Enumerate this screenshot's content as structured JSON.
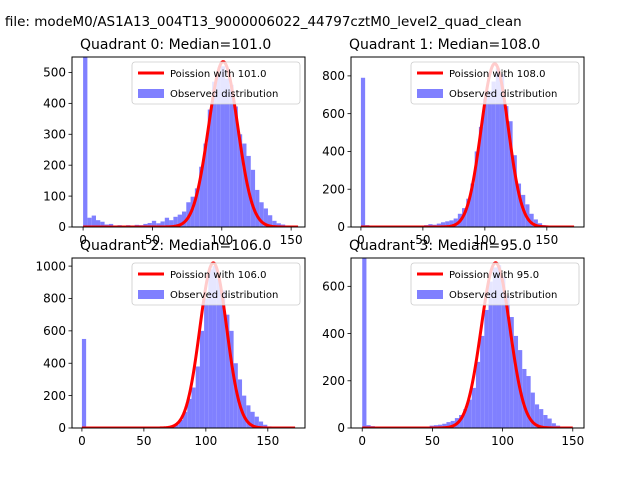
{
  "figure_title": "n file: modeM0/AS1A13_004T13_9000006022_44797cztM0_level2_quad_clean",
  "colors": {
    "histogram": "#8080ff",
    "poisson": "#ff0000"
  },
  "chart_data": [
    {
      "type": "bar",
      "title": "Quadrant 0: Median=101.0",
      "xlabel": "",
      "ylabel": "",
      "xlim": [
        -8,
        160
      ],
      "ylim": [
        0,
        550
      ],
      "xticks": [
        0,
        50,
        100,
        150
      ],
      "yticks": [
        0,
        100,
        200,
        300,
        400,
        500
      ],
      "legend": {
        "placement": "upper right",
        "entries": [
          "Poission with 101.0",
          "Observed distribution"
        ]
      },
      "series": [
        {
          "name": "Observed distribution",
          "type": "histogram",
          "bin_width": 3.1,
          "bins": [
            [
              0,
              550
            ],
            [
              3.1,
              30
            ],
            [
              6.2,
              37
            ],
            [
              9.3,
              22
            ],
            [
              12.4,
              17
            ],
            [
              15.5,
              8
            ],
            [
              18.6,
              10
            ],
            [
              21.7,
              5
            ],
            [
              24.8,
              6
            ],
            [
              27.9,
              4
            ],
            [
              31.0,
              6
            ],
            [
              34.1,
              5
            ],
            [
              37.2,
              7
            ],
            [
              40.3,
              6
            ],
            [
              43.4,
              10
            ],
            [
              46.5,
              13
            ],
            [
              49.6,
              20
            ],
            [
              52.7,
              12
            ],
            [
              55.8,
              18
            ],
            [
              58.9,
              30
            ],
            [
              62.0,
              22
            ],
            [
              65.1,
              33
            ],
            [
              68.2,
              40
            ],
            [
              71.3,
              50
            ],
            [
              74.4,
              80
            ],
            [
              77.5,
              98
            ],
            [
              80.6,
              125
            ],
            [
              83.7,
              195
            ],
            [
              86.8,
              270
            ],
            [
              89.9,
              380
            ],
            [
              93.0,
              470
            ],
            [
              96.1,
              490
            ],
            [
              99.2,
              520
            ],
            [
              102.3,
              480
            ],
            [
              105.4,
              460
            ],
            [
              108.5,
              390
            ],
            [
              111.6,
              300
            ],
            [
              114.7,
              270
            ],
            [
              117.8,
              230
            ],
            [
              120.9,
              185
            ],
            [
              124.0,
              120
            ],
            [
              127.1,
              80
            ],
            [
              130.2,
              60
            ],
            [
              133.3,
              38
            ],
            [
              136.4,
              20
            ],
            [
              139.5,
              12
            ],
            [
              142.6,
              8
            ],
            [
              145.7,
              5
            ],
            [
              148.8,
              3
            ]
          ]
        },
        {
          "name": "Poission with 101.0",
          "type": "line",
          "lambda": 101.0,
          "amplitude": 535,
          "x_range": [
            0,
            155
          ]
        }
      ]
    },
    {
      "type": "bar",
      "title": "Quadrant 1: Median=108.0",
      "xlabel": "",
      "ylabel": "",
      "xlim": [
        -8,
        180
      ],
      "ylim": [
        0,
        900
      ],
      "xticks": [
        0,
        50,
        100,
        150
      ],
      "yticks": [
        0,
        200,
        400,
        600,
        800
      ],
      "legend": {
        "placement": "upper right",
        "entries": [
          "Poission with 108.0",
          "Observed distribution"
        ]
      },
      "series": [
        {
          "name": "Observed distribution",
          "type": "histogram",
          "bin_width": 3.4,
          "bins": [
            [
              0,
              790
            ],
            [
              3.4,
              10
            ],
            [
              6.8,
              6
            ],
            [
              10.2,
              4
            ],
            [
              13.6,
              5
            ],
            [
              17.0,
              4
            ],
            [
              20.4,
              3
            ],
            [
              23.8,
              3
            ],
            [
              27.2,
              4
            ],
            [
              30.6,
              3
            ],
            [
              34.0,
              3
            ],
            [
              37.4,
              4
            ],
            [
              40.8,
              5
            ],
            [
              44.2,
              5
            ],
            [
              47.6,
              6
            ],
            [
              51.0,
              10
            ],
            [
              54.4,
              15
            ],
            [
              57.8,
              12
            ],
            [
              61.2,
              18
            ],
            [
              64.6,
              25
            ],
            [
              68.0,
              30
            ],
            [
              71.4,
              35
            ],
            [
              74.8,
              45
            ],
            [
              78.2,
              70
            ],
            [
              81.6,
              100
            ],
            [
              85.0,
              150
            ],
            [
              88.4,
              230
            ],
            [
              91.8,
              400
            ],
            [
              95.2,
              530
            ],
            [
              98.6,
              680
            ],
            [
              102.0,
              720
            ],
            [
              105.4,
              770
            ],
            [
              108.8,
              840
            ],
            [
              112.2,
              810
            ],
            [
              115.6,
              640
            ],
            [
              119.0,
              560
            ],
            [
              122.4,
              380
            ],
            [
              125.8,
              230
            ],
            [
              129.2,
              170
            ],
            [
              132.6,
              120
            ],
            [
              136.0,
              70
            ],
            [
              139.4,
              40
            ],
            [
              142.8,
              20
            ],
            [
              146.2,
              10
            ],
            [
              149.6,
              6
            ],
            [
              153.0,
              4
            ],
            [
              156.4,
              3
            ],
            [
              159.8,
              2
            ]
          ]
        },
        {
          "name": "Poission with 108.0",
          "type": "line",
          "lambda": 108.0,
          "amplitude": 865,
          "x_range": [
            0,
            172
          ]
        }
      ]
    },
    {
      "type": "bar",
      "title": "Quadrant 2: Median=106.0",
      "xlabel": "",
      "ylabel": "",
      "xlim": [
        -8,
        180
      ],
      "ylim": [
        0,
        1050
      ],
      "xticks": [
        0,
        50,
        100,
        150
      ],
      "yticks": [
        0,
        200,
        400,
        600,
        800,
        1000
      ],
      "legend": {
        "placement": "upper right",
        "entries": [
          "Poission with 106.0",
          "Observed distribution"
        ]
      },
      "series": [
        {
          "name": "Observed distribution",
          "type": "histogram",
          "bin_width": 3.4,
          "bins": [
            [
              0,
              550
            ],
            [
              3.4,
              2
            ],
            [
              6.8,
              2
            ],
            [
              10.2,
              1
            ],
            [
              13.6,
              1
            ],
            [
              17.0,
              1
            ],
            [
              20.4,
              1
            ],
            [
              23.8,
              1
            ],
            [
              27.2,
              1
            ],
            [
              30.6,
              1
            ],
            [
              34.0,
              1
            ],
            [
              37.4,
              1
            ],
            [
              40.8,
              1
            ],
            [
              44.2,
              1
            ],
            [
              47.6,
              1
            ],
            [
              51.0,
              1
            ],
            [
              54.4,
              2
            ],
            [
              57.8,
              2
            ],
            [
              61.2,
              3
            ],
            [
              64.6,
              4
            ],
            [
              68.0,
              6
            ],
            [
              71.4,
              10
            ],
            [
              74.8,
              20
            ],
            [
              78.2,
              50
            ],
            [
              81.6,
              100
            ],
            [
              85.0,
              180
            ],
            [
              88.4,
              250
            ],
            [
              91.8,
              380
            ],
            [
              95.2,
              600
            ],
            [
              98.6,
              800
            ],
            [
              102.0,
              980
            ],
            [
              105.4,
              1000
            ],
            [
              108.8,
              920
            ],
            [
              112.2,
              850
            ],
            [
              115.6,
              700
            ],
            [
              119.0,
              600
            ],
            [
              122.4,
              400
            ],
            [
              125.8,
              300
            ],
            [
              129.2,
              200
            ],
            [
              132.6,
              140
            ],
            [
              136.0,
              100
            ],
            [
              139.4,
              70
            ],
            [
              142.8,
              40
            ],
            [
              146.2,
              20
            ],
            [
              149.6,
              10
            ],
            [
              153.0,
              5
            ],
            [
              156.4,
              3
            ],
            [
              159.8,
              2
            ]
          ]
        },
        {
          "name": "Poission with 106.0",
          "type": "line",
          "lambda": 106.0,
          "amplitude": 1020,
          "x_range": [
            0,
            172
          ]
        }
      ]
    },
    {
      "type": "bar",
      "title": "Quadrant 3: Median=95.0",
      "xlabel": "",
      "ylabel": "",
      "xlim": [
        -8,
        158
      ],
      "ylim": [
        0,
        720
      ],
      "xticks": [
        0,
        50,
        100,
        150
      ],
      "yticks": [
        0,
        200,
        400,
        600
      ],
      "legend": {
        "placement": "upper right",
        "entries": [
          "Poission with 95.0",
          "Observed distribution"
        ]
      },
      "series": [
        {
          "name": "Observed distribution",
          "type": "histogram",
          "bin_width": 3.0,
          "bins": [
            [
              0,
              720
            ],
            [
              3.0,
              12
            ],
            [
              6.0,
              8
            ],
            [
              9.0,
              6
            ],
            [
              12.0,
              5
            ],
            [
              15.0,
              4
            ],
            [
              18.0,
              4
            ],
            [
              21.0,
              3
            ],
            [
              24.0,
              3
            ],
            [
              27.0,
              3
            ],
            [
              30.0,
              4
            ],
            [
              33.0,
              4
            ],
            [
              36.0,
              5
            ],
            [
              39.0,
              6
            ],
            [
              42.0,
              5
            ],
            [
              45.0,
              6
            ],
            [
              48.0,
              10
            ],
            [
              51.0,
              12
            ],
            [
              54.0,
              14
            ],
            [
              57.0,
              18
            ],
            [
              60.0,
              25
            ],
            [
              63.0,
              30
            ],
            [
              66.0,
              42
            ],
            [
              69.0,
              55
            ],
            [
              72.0,
              80
            ],
            [
              75.0,
              120
            ],
            [
              78.0,
              170
            ],
            [
              81.0,
              280
            ],
            [
              84.0,
              390
            ],
            [
              87.0,
              500
            ],
            [
              90.0,
              620
            ],
            [
              93.0,
              680
            ],
            [
              96.0,
              690
            ],
            [
              99.0,
              640
            ],
            [
              102.0,
              560
            ],
            [
              105.0,
              470
            ],
            [
              108.0,
              390
            ],
            [
              111.0,
              330
            ],
            [
              114.0,
              250
            ],
            [
              117.0,
              220
            ],
            [
              120.0,
              150
            ],
            [
              123.0,
              100
            ],
            [
              126.0,
              80
            ],
            [
              129.0,
              55
            ],
            [
              132.0,
              40
            ],
            [
              135.0,
              20
            ],
            [
              138.0,
              10
            ],
            [
              141.0,
              5
            ]
          ]
        },
        {
          "name": "Poission with 95.0",
          "type": "line",
          "lambda": 95.0,
          "amplitude": 700,
          "x_range": [
            0,
            150
          ]
        }
      ]
    }
  ]
}
